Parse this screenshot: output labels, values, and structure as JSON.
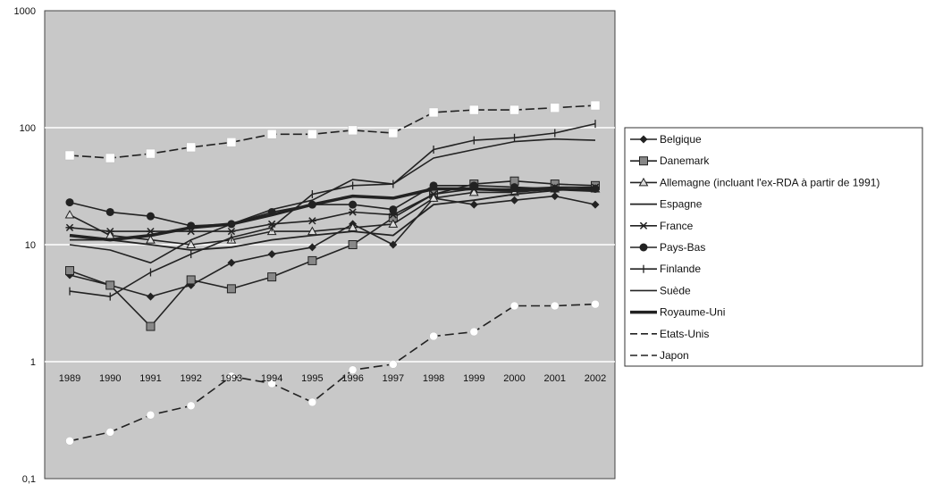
{
  "chart_data": {
    "type": "line",
    "y_scale": "log",
    "ylim": [
      0.1,
      1000
    ],
    "y_ticks": [
      {
        "value": 1000,
        "label": "1000"
      },
      {
        "value": 100,
        "label": "100"
      },
      {
        "value": 10,
        "label": "10"
      },
      {
        "value": 1,
        "label": "1"
      },
      {
        "value": 0.1,
        "label": "0,1"
      }
    ],
    "x": [
      "1989",
      "1990",
      "1991",
      "1992",
      "1993",
      "1994",
      "1995",
      "1996",
      "1997",
      "1998",
      "1999",
      "2000",
      "2001",
      "2002"
    ],
    "grid": "horizontal",
    "legend_position": "right",
    "colors": {
      "plot_background": "#c8c8c8",
      "gridline": "#ffffff",
      "series": "#222222"
    },
    "series": [
      {
        "name": "Belgique",
        "marker": "diamond",
        "values": [
          5.5,
          4.5,
          3.6,
          4.5,
          7.0,
          8.3,
          9.5,
          15,
          10,
          25,
          22,
          24,
          26,
          22
        ]
      },
      {
        "name": "Danemark",
        "marker": "square",
        "values": [
          6,
          4.5,
          2,
          5,
          4.2,
          5.3,
          7.3,
          10,
          17,
          27,
          33,
          35,
          33,
          32
        ]
      },
      {
        "name": "Allemagne (incluant l'ex-RDA à partir de 1991)",
        "marker": "triangle",
        "values": [
          18,
          12,
          11,
          10,
          11,
          13,
          13,
          14,
          15,
          25,
          28,
          28,
          30,
          30
        ]
      },
      {
        "name": "Espagne",
        "marker": "none",
        "values": [
          11,
          11,
          10,
          9,
          9.5,
          11,
          12,
          13,
          12,
          22,
          24,
          27,
          29,
          31
        ]
      },
      {
        "name": "France",
        "marker": "star",
        "values": [
          14,
          13,
          13,
          13,
          13,
          15,
          16,
          19,
          18,
          27,
          30,
          30,
          31,
          31
        ]
      },
      {
        "name": "Pays-Bas",
        "marker": "circle",
        "values": [
          23,
          19,
          17.5,
          14.5,
          15,
          19,
          22,
          22,
          20,
          32,
          32,
          31,
          30,
          30
        ]
      },
      {
        "name": "Finlande",
        "marker": "plus",
        "values": [
          4,
          3.6,
          5.8,
          8.3,
          11.5,
          14,
          27,
          32,
          33,
          65,
          78,
          82,
          90,
          108
        ]
      },
      {
        "name": "Suède",
        "marker": "none",
        "values": [
          10,
          9,
          7,
          11,
          15,
          20,
          24,
          36,
          33,
          55,
          65,
          76,
          80,
          78
        ]
      },
      {
        "name": "Royaume-Uni",
        "marker": "none",
        "values": [
          12,
          11,
          12,
          14,
          15,
          18,
          22,
          26,
          25,
          30,
          30,
          29,
          30,
          29
        ]
      },
      {
        "name": "Etats-Unis",
        "marker": "white-square",
        "values": [
          58,
          55,
          60,
          68,
          75,
          88,
          88,
          95,
          90,
          135,
          142,
          142,
          148,
          155
        ]
      },
      {
        "name": "Japon",
        "marker": "white-circle",
        "values": [
          0.21,
          0.25,
          0.35,
          0.42,
          0.75,
          0.65,
          0.45,
          0.85,
          0.95,
          1.65,
          1.8,
          3.0,
          3.0,
          3.1
        ]
      }
    ]
  }
}
